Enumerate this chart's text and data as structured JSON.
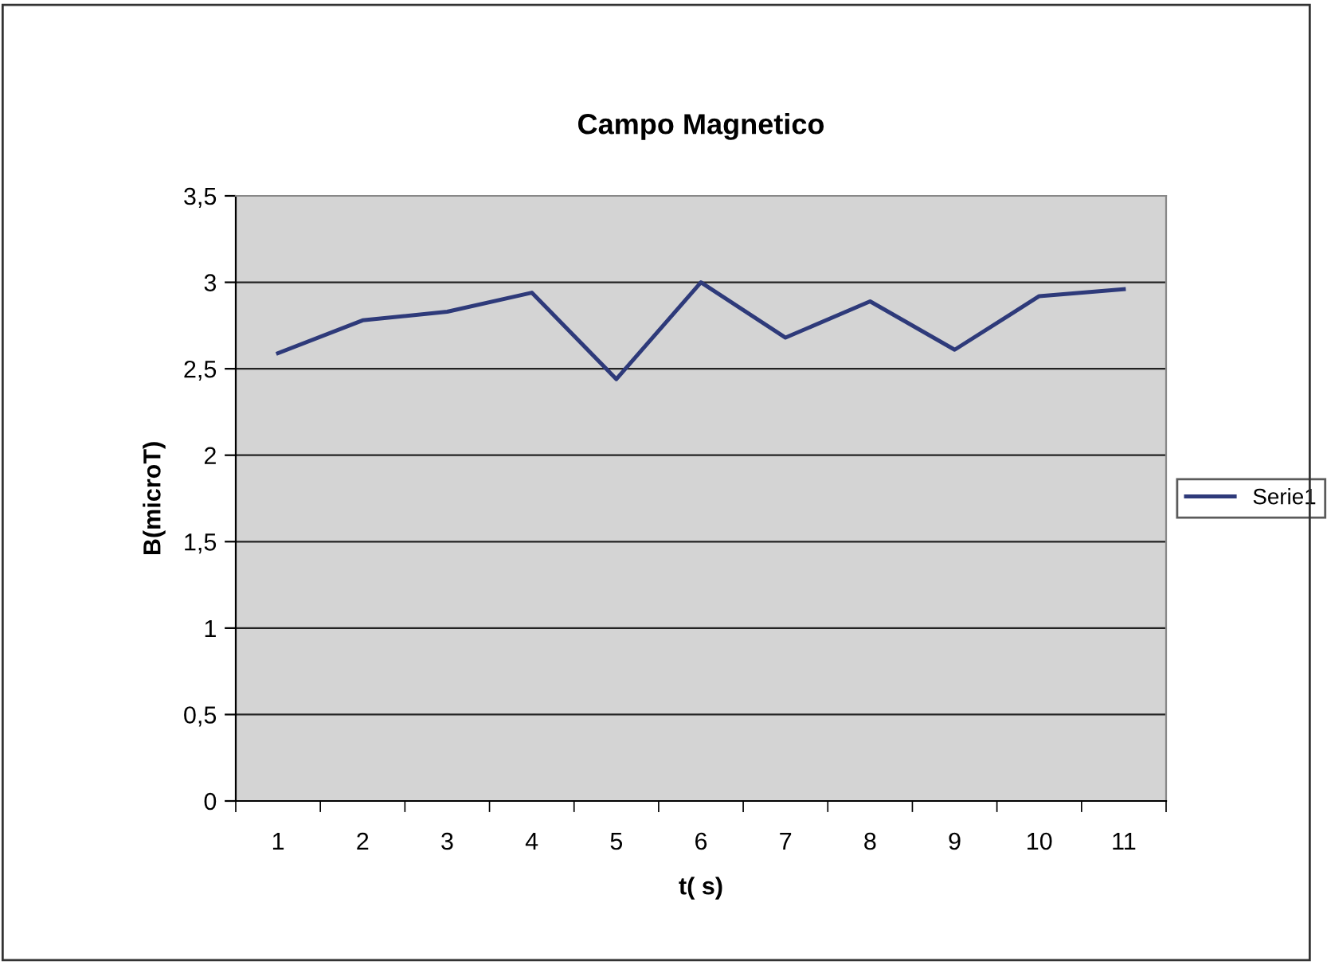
{
  "chart_data": {
    "type": "line",
    "title": "Campo Magnetico",
    "xlabel": "t( s)",
    "ylabel": "B(microT)",
    "categories": [
      "1",
      "2",
      "3",
      "4",
      "5",
      "6",
      "7",
      "8",
      "9",
      "10",
      "11"
    ],
    "series": [
      {
        "name": "Serie1",
        "color": "#2e3a7a",
        "values": [
          2.59,
          2.78,
          2.83,
          2.94,
          2.44,
          3.0,
          2.68,
          2.89,
          2.61,
          2.92,
          2.96
        ]
      }
    ],
    "ylim": [
      0,
      3.5
    ],
    "yticks": [
      0,
      {
        "value": 0.5,
        "label": "0,5"
      },
      1,
      {
        "value": 1.5,
        "label": "1,5"
      },
      2,
      {
        "value": 2.5,
        "label": "2,5"
      },
      3,
      {
        "value": 3.5,
        "label": "3,5"
      }
    ],
    "grid": "y",
    "legend": "right",
    "marker": "none",
    "line_style": "solid"
  }
}
